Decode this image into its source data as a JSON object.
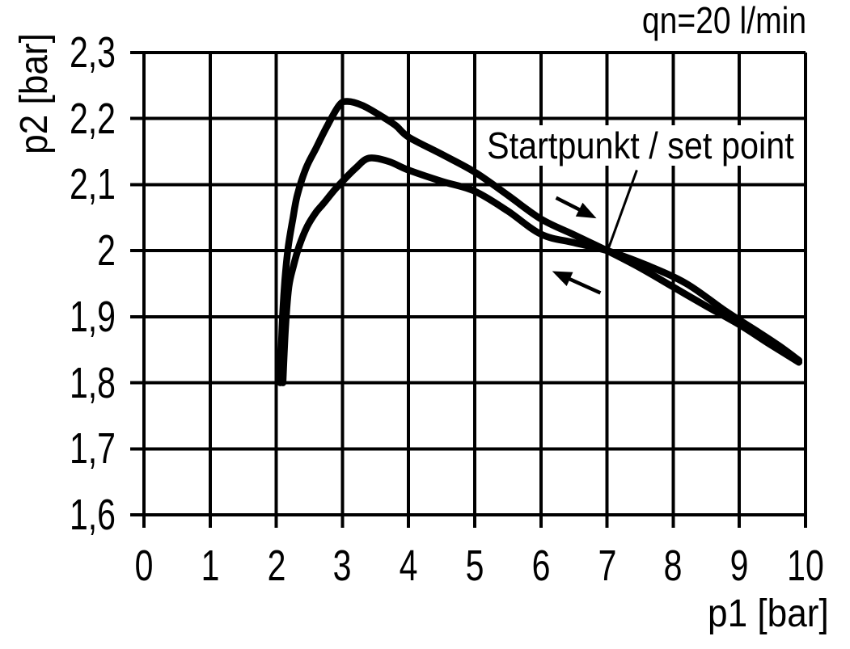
{
  "chart_data": {
    "type": "line",
    "title": "qn=20 l/min",
    "xlabel": "p1 [bar]",
    "ylabel": "p2 [bar]",
    "xlim": [
      0,
      10
    ],
    "ylim": [
      1.6,
      2.3
    ],
    "grid": "on",
    "background_color": "#ffffff",
    "line_color": "#000000",
    "grid_color": "#000000",
    "x_ticks": {
      "values": [
        0,
        1,
        2,
        3,
        4,
        5,
        6,
        7,
        8,
        9,
        10
      ],
      "labels": [
        "0",
        "1",
        "2",
        "3",
        "4",
        "5",
        "6",
        "7",
        "8",
        "9",
        "10"
      ]
    },
    "y_ticks": {
      "values": [
        2.3,
        2.2,
        2.1,
        2.0,
        1.9,
        1.8,
        1.7,
        1.6
      ],
      "labels": [
        "2,3",
        "2,2",
        "2,1",
        "2",
        "1,9",
        "1,8",
        "1,7",
        "1,6"
      ]
    },
    "annotation": {
      "label": "Startpunkt / set point",
      "target_point": [
        7.02,
        2.003
      ],
      "label_anchor": [
        7.45,
        2.122
      ]
    },
    "arrows": [
      {
        "name": "arrow-right",
        "direction": "right",
        "from": [
          6.23,
          2.08
        ],
        "to": [
          6.84,
          2.049
        ]
      },
      {
        "name": "arrow-left",
        "direction": "left",
        "from": [
          6.9,
          1.936
        ],
        "to": [
          6.17,
          1.969
        ]
      }
    ],
    "series": [
      {
        "name": "upper-curve",
        "points": [
          [
            2.06,
            1.8
          ],
          [
            2.09,
            1.89
          ],
          [
            2.13,
            1.955
          ],
          [
            2.18,
            2.005
          ],
          [
            2.25,
            2.048
          ],
          [
            2.32,
            2.085
          ],
          [
            2.45,
            2.125
          ],
          [
            2.6,
            2.155
          ],
          [
            2.75,
            2.185
          ],
          [
            2.95,
            2.22
          ],
          [
            3.08,
            2.226
          ],
          [
            3.3,
            2.22
          ],
          [
            3.55,
            2.206
          ],
          [
            3.8,
            2.19
          ],
          [
            4.0,
            2.172
          ],
          [
            4.5,
            2.146
          ],
          [
            5.0,
            2.119
          ],
          [
            5.5,
            2.084
          ],
          [
            6.0,
            2.048
          ],
          [
            6.5,
            2.024
          ],
          [
            7.0,
            2.0
          ],
          [
            7.5,
            1.974
          ],
          [
            8.0,
            1.945
          ],
          [
            8.5,
            1.916
          ],
          [
            9.0,
            1.888
          ],
          [
            9.45,
            1.859
          ],
          [
            9.9,
            1.831
          ]
        ]
      },
      {
        "name": "lower-curve",
        "points": [
          [
            2.1,
            1.8
          ],
          [
            2.14,
            1.885
          ],
          [
            2.19,
            1.945
          ],
          [
            2.26,
            1.977
          ],
          [
            2.35,
            2.008
          ],
          [
            2.47,
            2.037
          ],
          [
            2.6,
            2.058
          ],
          [
            2.71,
            2.071
          ],
          [
            2.88,
            2.092
          ],
          [
            3.02,
            2.107
          ],
          [
            3.2,
            2.125
          ],
          [
            3.4,
            2.14
          ],
          [
            3.7,
            2.135
          ],
          [
            4.0,
            2.122
          ],
          [
            4.5,
            2.105
          ],
          [
            5.0,
            2.09
          ],
          [
            5.5,
            2.06
          ],
          [
            6.0,
            2.025
          ],
          [
            6.5,
            2.012
          ],
          [
            7.0,
            2.0
          ],
          [
            7.6,
            1.978
          ],
          [
            8.2,
            1.95
          ],
          [
            8.8,
            1.908
          ],
          [
            9.3,
            1.876
          ],
          [
            9.6,
            1.856
          ],
          [
            9.9,
            1.834
          ]
        ]
      }
    ]
  }
}
